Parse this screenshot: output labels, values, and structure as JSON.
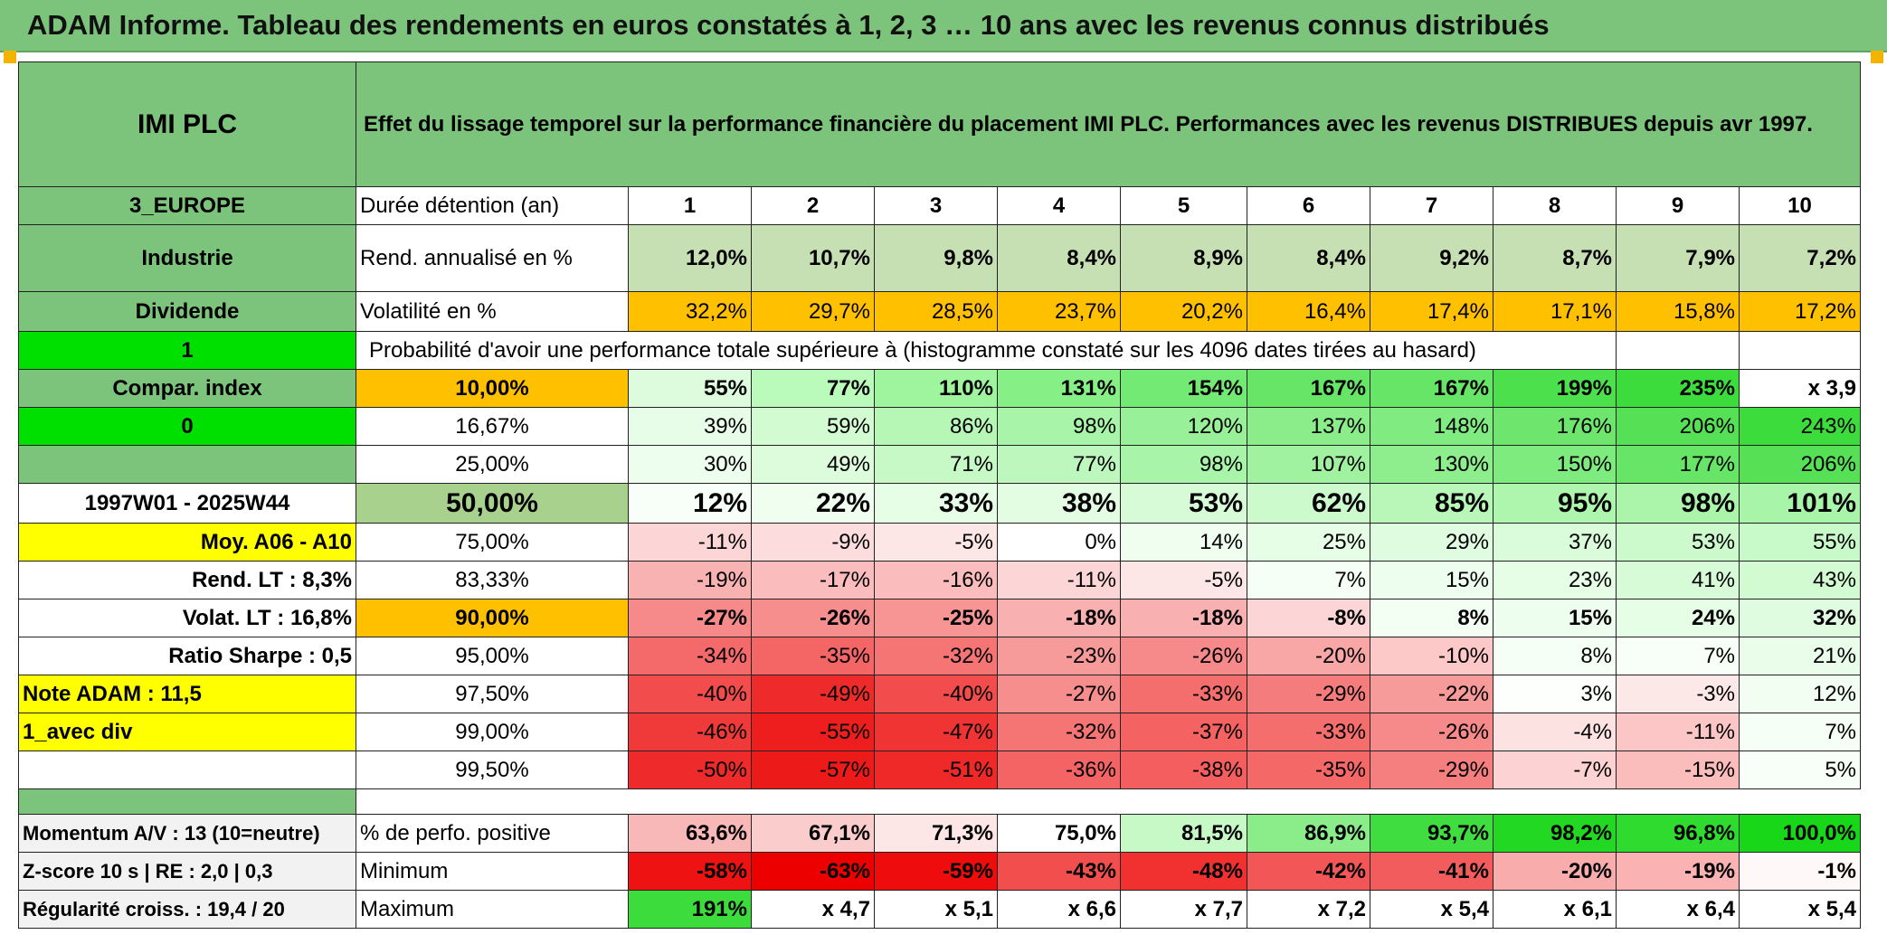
{
  "title": "ADAM Informe. Tableau des rendements en euros constatés à 1, 2, 3 … 10 ans avec les revenus connus distribués",
  "header": {
    "company": "IMI PLC",
    "description": "Effet du lissage temporel sur la performance financière du placement IMI PLC. Performances avec les revenus DISTRIBUES depuis avr 1997."
  },
  "side": {
    "region": "3_EUROPE",
    "sector": "Industrie",
    "income": "Dividende",
    "flag1": "1",
    "compar": "Compar. index",
    "flag0": "0",
    "period": "1997W01 - 2025W44",
    "moy": "Moy. A06 - A10",
    "rend_lt": "Rend. LT :   8,3%",
    "volat_lt": "Volat. LT :   16,8%",
    "sharpe": "Ratio Sharpe :   0,5",
    "note": "Note ADAM : 11,5",
    "avec_div": "1_avec div",
    "momentum": "Momentum A/V : 13 (10=neutre)",
    "zscore": "Z-score 10 s | RE : 2,0 | 0,3",
    "regularite": "Régularité croiss. : 19,4 / 20"
  },
  "labels": {
    "duree": "Durée détention (an)",
    "rend": "Rend. annualisé en %",
    "volat": "Volatilité en %",
    "proba": "Probabilité d'avoir une performance totale supérieure à (histogramme constaté sur les 4096 dates tirées au hasard)",
    "pct_pos": "% de perfo. positive",
    "minimum": "Minimum",
    "maximum": "Maximum"
  },
  "years": [
    "1",
    "2",
    "3",
    "4",
    "5",
    "6",
    "7",
    "8",
    "9",
    "10"
  ],
  "rend_values": [
    "12,0%",
    "10,7%",
    "9,8%",
    "8,4%",
    "8,9%",
    "8,4%",
    "9,2%",
    "8,7%",
    "7,9%",
    "7,2%"
  ],
  "volat_values": [
    "32,2%",
    "29,7%",
    "28,5%",
    "23,7%",
    "20,2%",
    "16,4%",
    "17,4%",
    "17,1%",
    "15,8%",
    "17,2%"
  ],
  "percentiles": [
    {
      "label": "10,00%",
      "bold": true,
      "values": [
        "55%",
        "77%",
        "110%",
        "131%",
        "154%",
        "167%",
        "167%",
        "199%",
        "235%",
        "x 3,9"
      ]
    },
    {
      "label": "16,67%",
      "bold": false,
      "values": [
        "39%",
        "59%",
        "86%",
        "98%",
        "120%",
        "137%",
        "148%",
        "176%",
        "206%",
        "243%"
      ]
    },
    {
      "label": "25,00%",
      "bold": false,
      "values": [
        "30%",
        "49%",
        "71%",
        "77%",
        "98%",
        "107%",
        "130%",
        "150%",
        "177%",
        "206%"
      ]
    },
    {
      "label": "50,00%",
      "bold": true,
      "big": true,
      "values": [
        "12%",
        "22%",
        "33%",
        "38%",
        "53%",
        "62%",
        "85%",
        "95%",
        "98%",
        "101%"
      ]
    },
    {
      "label": "75,00%",
      "bold": false,
      "values": [
        "-11%",
        "-9%",
        "-5%",
        "0%",
        "14%",
        "25%",
        "29%",
        "37%",
        "53%",
        "55%"
      ]
    },
    {
      "label": "83,33%",
      "bold": false,
      "values": [
        "-19%",
        "-17%",
        "-16%",
        "-11%",
        "-5%",
        "7%",
        "15%",
        "23%",
        "41%",
        "43%"
      ]
    },
    {
      "label": "90,00%",
      "bold": true,
      "values": [
        "-27%",
        "-26%",
        "-25%",
        "-18%",
        "-18%",
        "-8%",
        "8%",
        "15%",
        "24%",
        "32%"
      ]
    },
    {
      "label": "95,00%",
      "bold": false,
      "values": [
        "-34%",
        "-35%",
        "-32%",
        "-23%",
        "-26%",
        "-20%",
        "-10%",
        "8%",
        "7%",
        "21%"
      ]
    },
    {
      "label": "97,50%",
      "bold": false,
      "values": [
        "-40%",
        "-49%",
        "-40%",
        "-27%",
        "-33%",
        "-29%",
        "-22%",
        "3%",
        "-3%",
        "12%"
      ]
    },
    {
      "label": "99,00%",
      "bold": false,
      "values": [
        "-46%",
        "-55%",
        "-47%",
        "-32%",
        "-37%",
        "-33%",
        "-26%",
        "-4%",
        "-11%",
        "7%"
      ]
    },
    {
      "label": "99,50%",
      "bold": false,
      "values": [
        "-50%",
        "-57%",
        "-51%",
        "-36%",
        "-38%",
        "-35%",
        "-29%",
        "-7%",
        "-15%",
        "5%"
      ]
    }
  ],
  "pct_pos_values": [
    "63,6%",
    "67,1%",
    "71,3%",
    "75,0%",
    "81,5%",
    "86,9%",
    "93,7%",
    "98,2%",
    "96,8%",
    "100,0%"
  ],
  "min_values": [
    "-58%",
    "-63%",
    "-59%",
    "-43%",
    "-48%",
    "-42%",
    "-41%",
    "-20%",
    "-19%",
    "-1%"
  ],
  "max_values": [
    "191%",
    "x 4,7",
    "x 5,1",
    "x 6,6",
    "x 7,7",
    "x 7,2",
    "x 5,4",
    "x 6,1",
    "x 6,4",
    "x 5,4"
  ],
  "colors": {
    "header_green": "#7cc47c",
    "light_green_rend": "#c6e0b4",
    "volat_orange": "#ffc000",
    "bright_green": "#00e000",
    "yellow": "#ffff00",
    "dark_red_text": "#d41f1f",
    "label_grey": "#f2f2f2"
  },
  "cell_colors": {
    "percentiles": [
      [
        "#ddfcdd",
        "#bafaba",
        "#9ef59e",
        "#86f086",
        "#73ea73",
        "#66e566",
        "#66e566",
        "#4de04d",
        "#3cdc3c",
        "#ffffff"
      ],
      [
        "#e8fde8",
        "#d2fbd2",
        "#b6f7b6",
        "#a8f4a8",
        "#98f098",
        "#8aed8a",
        "#80eb80",
        "#6ee66e",
        "#55e055",
        "#3cdc3c"
      ],
      [
        "#eefeee",
        "#dcfcdc",
        "#c6f9c6",
        "#bdf7bd",
        "#a8f4a8",
        "#a0f2a0",
        "#8eee8e",
        "#7deb7d",
        "#66e566",
        "#55e055"
      ],
      [
        "#f8fff8",
        "#f0fef0",
        "#e6fde6",
        "#e2fde2",
        "#d6fbd6",
        "#ccfacc",
        "#b8f7b8",
        "#aef5ae",
        "#abf5ab",
        "#a8f4a8"
      ],
      [
        "#fcd6d6",
        "#fcdcdc",
        "#fde6e6",
        "#ffffff",
        "#f0fef0",
        "#e6fde6",
        "#e0fce0",
        "#dafcda",
        "#ccfacc",
        "#c8f9c8"
      ],
      [
        "#f9b2b2",
        "#faba0000",
        "#fabcbc",
        "#fcd6d6",
        "#fde6e6",
        "#f6fff6",
        "#eefeee",
        "#e6fde6",
        "#d6fbd6",
        "#d2fbd2"
      ],
      [
        "#f68a8a",
        "#f68e8e",
        "#f79494",
        "#f9b0b0",
        "#f9b0b0",
        "#fcd6d6",
        "#f4fff4",
        "#eefeee",
        "#e6fde6",
        "#e0fce0"
      ],
      [
        "#f46a6a",
        "#f46666",
        "#f57474",
        "#f79a9a",
        "#f68a8a",
        "#f8a6a6",
        "#fcc8c8",
        "#f6fff6",
        "#f8fff8",
        "#eafdea"
      ],
      [
        "#f24c4c",
        "#ef2a2a",
        "#f24c4c",
        "#f68e8e",
        "#f46e6e",
        "#f57c7c",
        "#f79a9a",
        "#fcfffc",
        "#fde8e8",
        "#f2fef2"
      ],
      [
        "#f03a3a",
        "#ee1e1e",
        "#f03434",
        "#f57474",
        "#f46262",
        "#f46e6e",
        "#f68a8a",
        "#fde2e2",
        "#fcc6c6",
        "#f6fff6"
      ],
      [
        "#ee2a2a",
        "#ed1a1a",
        "#ef2828",
        "#f46464",
        "#f45e5e",
        "#f46868",
        "#f57e7e",
        "#fcd2d2",
        "#fbbcbc",
        "#f8fff8"
      ]
    ],
    "pct_pos": [
      "#f9b8b8",
      "#fbcccc",
      "#fde6e6",
      "#ffffff",
      "#c6f9c6",
      "#8aed8a",
      "#40dd40",
      "#22d822",
      "#2edb2e",
      "#18d618"
    ],
    "min": [
      "#ee1212",
      "#ec0000",
      "#ee0c0c",
      "#f34e4e",
      "#f13030",
      "#f35656",
      "#f35c5c",
      "#f9acac",
      "#fab2b2",
      "#fff8f8"
    ],
    "max": [
      "#3ddc3d",
      "#ffffff",
      "#ffffff",
      "#ffffff",
      "#ffffff",
      "#ffffff",
      "#ffffff",
      "#ffffff",
      "#ffffff",
      "#ffffff"
    ]
  }
}
